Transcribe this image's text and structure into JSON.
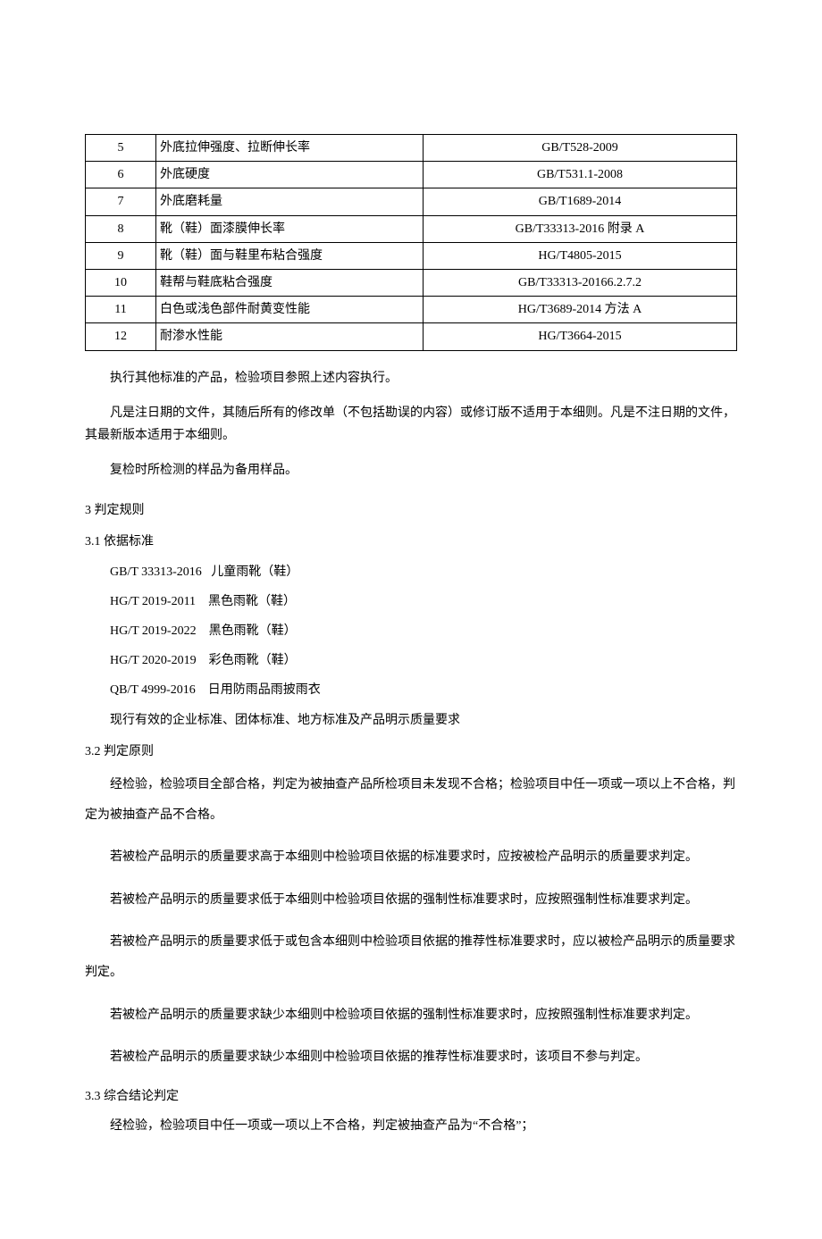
{
  "table": {
    "rows": [
      {
        "num": "5",
        "name": "外底拉伸强度、拉断伸长率",
        "std": "GB/T528-2009"
      },
      {
        "num": "6",
        "name": "外底硬度",
        "std": "GB/T531.1-2008"
      },
      {
        "num": "7",
        "name": "外底磨耗量",
        "std": "GB/T1689-2014"
      },
      {
        "num": "8",
        "name": "靴（鞋）面漆膜伸长率",
        "std": "GB/T33313-2016 附录 A"
      },
      {
        "num": "9",
        "name": "靴（鞋）面与鞋里布粘合强度",
        "std": "HG/T4805-2015"
      },
      {
        "num": "10",
        "name": "鞋帮与鞋底粘合强度",
        "std": "GB/T33313-20166.2.7.2"
      },
      {
        "num": "11",
        "name": "白色或浅色部件耐黄变性能",
        "std": "HG/T3689-2014 方法 A"
      },
      {
        "num": "12",
        "name": "耐渗水性能",
        "std": "HG/T3664-2015"
      }
    ]
  },
  "p1": "执行其他标准的产品，检验项目参照上述内容执行。",
  "p2": "凡是注日期的文件，其随后所有的修改单（不包括勘误的内容）或修订版不适用于本细则。凡是不注日期的文件，其最新版本适用于本细则。",
  "p3": "复检时所检测的样品为备用样品。",
  "s3": "3 判定规则",
  "s31": "3.1 依据标准",
  "stds": {
    "r1": "GB/T 33313-2016   儿童雨靴（鞋）",
    "r2": "HG/T 2019-2011    黑色雨靴（鞋）",
    "r3": "HG/T 2019-2022    黑色雨靴（鞋）",
    "r4": "HG/T 2020-2019    彩色雨靴（鞋）",
    "r5": "QB/T 4999-2016    日用防雨品雨披雨衣",
    "note": "现行有效的企业标准、团体标准、地方标准及产品明示质量要求"
  },
  "s32": "3.2 判定原则",
  "j1": "经检验，检验项目全部合格，判定为被抽查产品所检项目未发现不合格；检验项目中任一项或一项以上不合格，判定为被抽查产品不合格。",
  "j2": "若被检产品明示的质量要求高于本细则中检验项目依据的标准要求时，应按被检产品明示的质量要求判定。",
  "j3": "若被检产品明示的质量要求低于本细则中检验项目依据的强制性标准要求时，应按照强制性标准要求判定。",
  "j4": "若被检产品明示的质量要求低于或包含本细则中检验项目依据的推荐性标准要求时，应以被检产品明示的质量要求判定。",
  "j5": "若被检产品明示的质量要求缺少本细则中检验项目依据的强制性标准要求时，应按照强制性标准要求判定。",
  "j6": "若被检产品明示的质量要求缺少本细则中检验项目依据的推荐性标准要求时，该项目不参与判定。",
  "s33": "3.3 综合结论判定",
  "c1": "经检验，检验项目中任一项或一项以上不合格，判定被抽查产品为“不合格”；"
}
